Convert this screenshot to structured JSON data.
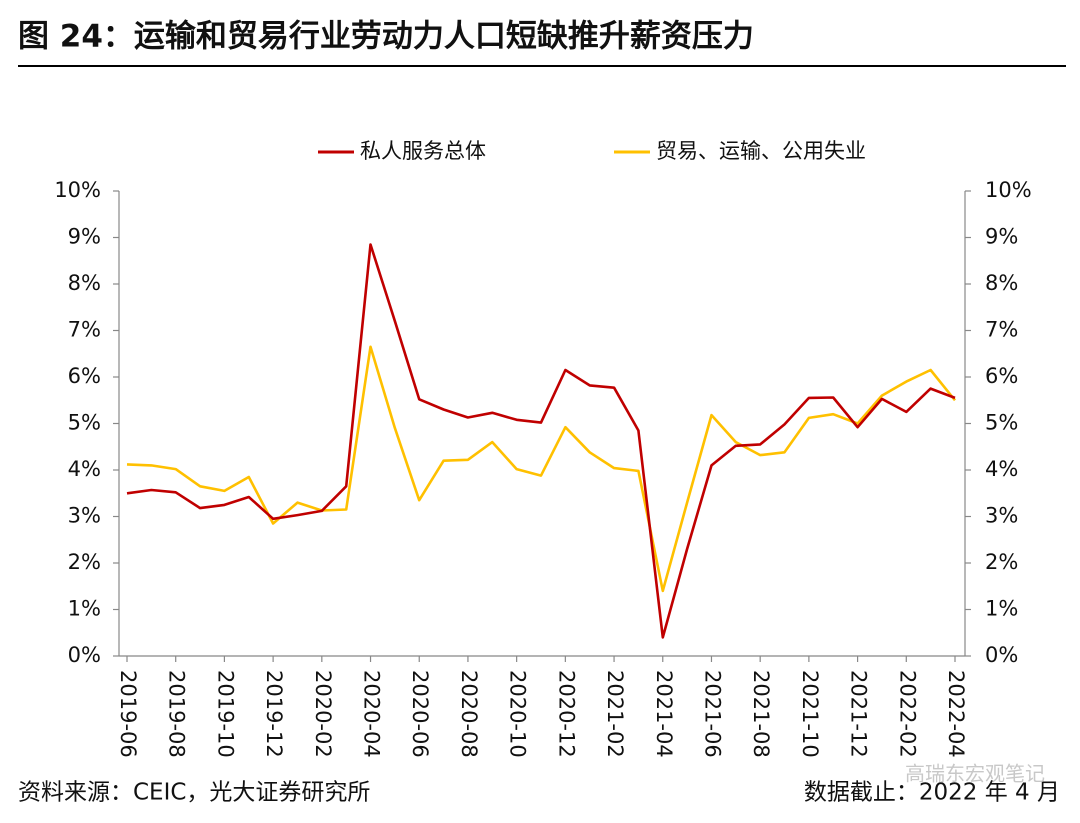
{
  "chart_data": {
    "type": "line",
    "title": "图 24：运输和贸易行业劳动力人口短缺推升薪资压力",
    "source": "资料来源：CEIC，光大证券研究所",
    "note": "数据截止：2022 年 4 月",
    "watermark": "高瑞东宏观笔记",
    "categories": [
      "2019-06",
      null,
      "2019-08",
      null,
      "2019-10",
      null,
      "2019-12",
      null,
      "2020-02",
      null,
      "2020-04",
      null,
      "2020-06",
      null,
      "2020-08",
      null,
      "2020-10",
      null,
      "2020-12",
      null,
      "2021-02",
      null,
      "2021-04",
      null,
      "2021-06",
      null,
      "2021-08",
      null,
      "2021-10",
      null,
      "2021-12",
      null,
      "2022-02",
      null,
      "2022-04"
    ],
    "series": [
      {
        "name": "私人服务总体",
        "color": "#c00000",
        "values": [
          3.5,
          3.57,
          3.52,
          3.18,
          3.25,
          3.42,
          2.95,
          3.03,
          3.12,
          3.65,
          8.85,
          7.2,
          5.52,
          5.3,
          5.13,
          5.23,
          5.08,
          5.02,
          6.15,
          5.82,
          5.77,
          4.85,
          0.4,
          2.3,
          4.1,
          4.52,
          4.55,
          4.98,
          5.55,
          5.56,
          4.92,
          5.53,
          5.25,
          5.75,
          5.55
        ]
      },
      {
        "name": "贸易、运输、公用失业",
        "color": "#ffc000",
        "values": [
          4.12,
          4.1,
          4.02,
          3.65,
          3.55,
          3.85,
          2.85,
          3.3,
          3.13,
          3.15,
          6.65,
          4.9,
          3.35,
          4.2,
          4.22,
          4.6,
          4.02,
          3.88,
          4.92,
          4.38,
          4.04,
          3.98,
          1.4,
          3.3,
          5.18,
          4.6,
          4.32,
          4.38,
          5.12,
          5.2,
          5.0,
          5.6,
          5.9,
          6.15,
          5.5
        ]
      }
    ],
    "ylim": [
      0,
      10
    ],
    "yticks": [
      {
        "value": 0,
        "label": "0%"
      },
      {
        "value": 1,
        "label": "1%"
      },
      {
        "value": 2,
        "label": "2%"
      },
      {
        "value": 3,
        "label": "3%"
      },
      {
        "value": 4,
        "label": "4%"
      },
      {
        "value": 5,
        "label": "5%"
      },
      {
        "value": 6,
        "label": "6%"
      },
      {
        "value": 7,
        "label": "7%"
      },
      {
        "value": 8,
        "label": "8%"
      },
      {
        "value": 9,
        "label": "9%"
      },
      {
        "value": 10,
        "label": "10%"
      }
    ],
    "y2lim": [
      0,
      10
    ],
    "y2ticks": [
      {
        "value": 0,
        "label": "0%"
      },
      {
        "value": 1,
        "label": "1%"
      },
      {
        "value": 2,
        "label": "2%"
      },
      {
        "value": 3,
        "label": "3%"
      },
      {
        "value": 4,
        "label": "4%"
      },
      {
        "value": 5,
        "label": "5%"
      },
      {
        "value": 6,
        "label": "6%"
      },
      {
        "value": 7,
        "label": "7%"
      },
      {
        "value": 8,
        "label": "8%"
      },
      {
        "value": 9,
        "label": "9%"
      },
      {
        "value": 10,
        "label": "10%"
      }
    ],
    "legend": "top",
    "grid": false
  }
}
